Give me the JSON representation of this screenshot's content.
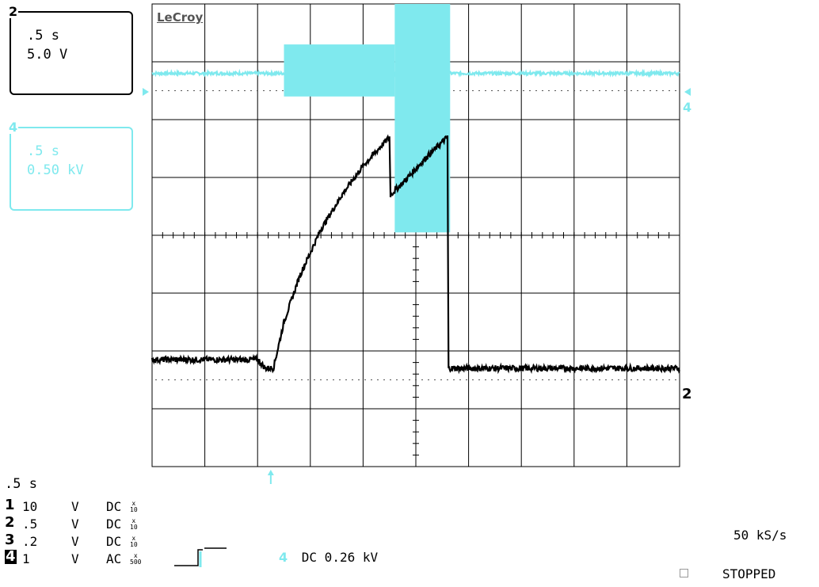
{
  "brand": "LeCroy",
  "trace_boxes": {
    "ch2": {
      "label": "2",
      "timebase": ".5 s",
      "scale": "5.0 V"
    },
    "ch4": {
      "label": "4",
      "timebase": ".5 s",
      "scale": "0.50 kV"
    }
  },
  "timebase": ".5 s",
  "channels": [
    {
      "num": "1",
      "volts": "10",
      "unit": "V",
      "coupling": "DC",
      "probe_top": "x",
      "probe_bottom": "10"
    },
    {
      "num": "2",
      "volts": ".5",
      "unit": "V",
      "coupling": "DC",
      "probe_top": "x",
      "probe_bottom": "10"
    },
    {
      "num": "3",
      "volts": ".2",
      "unit": "V",
      "coupling": "DC",
      "probe_top": "x",
      "probe_bottom": "10"
    },
    {
      "num": "4",
      "volts": "1",
      "unit": "V",
      "coupling": "AC",
      "probe_top": "x",
      "probe_bottom": "500"
    }
  ],
  "trigger": {
    "channel": "4",
    "text": "DC 0.26 kV"
  },
  "sample_rate": "50 kS/s",
  "status": "STOPPED",
  "colors": {
    "ch2": "#000000",
    "ch4": "#7fe9ee",
    "grid": "#000000"
  },
  "chart_data": {
    "type": "line",
    "title": "",
    "x_divisions": 10,
    "y_divisions": 8,
    "time_per_div_s": 0.5,
    "x": [
      0,
      2,
      2.15,
      2.3,
      2.5,
      2.8,
      3.2,
      3.6,
      4.0,
      4.5,
      4.52,
      4.8,
      5.2,
      5.6,
      5.62,
      10
    ],
    "series": [
      {
        "name": "2",
        "y_div": [
          -2.15,
          -2.15,
          -2.3,
          -2.3,
          -1.5,
          -0.7,
          0.1,
          0.7,
          1.2,
          1.7,
          0.7,
          0.95,
          1.35,
          1.7,
          -2.3,
          -2.3
        ]
      }
    ],
    "ch4_trace": {
      "name": "4",
      "baseline_div": 2.8,
      "segments": [
        {
          "t_start": 0,
          "t_end": 2.5,
          "min_div": 2.8,
          "max_div": 2.8
        },
        {
          "t_start": 2.5,
          "t_end": 4.6,
          "min_div": 2.4,
          "max_div": 3.3
        },
        {
          "t_start": 4.6,
          "t_end": 5.65,
          "min_div": 0.05,
          "max_div": 4.0
        },
        {
          "t_start": 5.65,
          "t_end": 10,
          "min_div": 2.8,
          "max_div": 2.8
        }
      ]
    }
  }
}
